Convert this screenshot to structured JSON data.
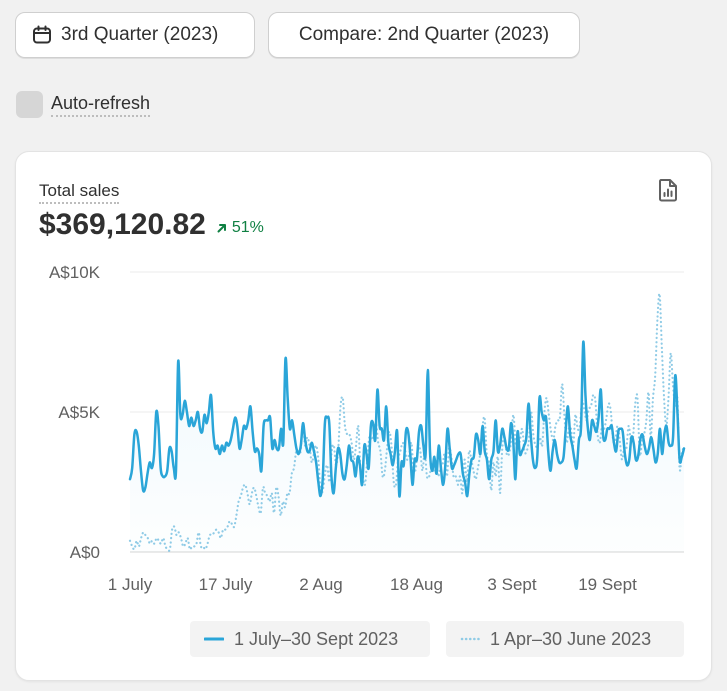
{
  "controls": {
    "period_label": "3rd Quarter (2023)",
    "compare_label": "Compare: 2nd Quarter (2023)",
    "auto_refresh_label": "Auto-refresh",
    "auto_refresh_checked": false
  },
  "card": {
    "title": "Total sales",
    "total": "$369,120.82",
    "delta": "51%",
    "delta_direction": "up",
    "report_icon": "report-icon"
  },
  "colors": {
    "current": "#2aa5d8",
    "previous": "#8fcbe6",
    "positive": "#108043"
  },
  "chart_data": {
    "type": "line",
    "title": "",
    "xlabel": "",
    "ylabel": "",
    "ylim": [
      0,
      10000
    ],
    "y_ticks": [
      0,
      5000,
      10000
    ],
    "y_tick_labels": [
      "A$0",
      "A$5K",
      "A$10K"
    ],
    "x_tick_labels": [
      "1 July",
      "17 July",
      "2 Aug",
      "18 Aug",
      "3 Sept",
      "19 Sept"
    ],
    "grid": true,
    "legend": "bottom",
    "series": [
      {
        "name": "1 July–30 Sept 2023",
        "style": "solid",
        "values": [
          2600,
          3000,
          4200,
          4300,
          3800,
          2900,
          2200,
          2300,
          2800,
          3200,
          3000,
          3500,
          5000,
          4500,
          3000,
          2700,
          2700,
          2900,
          3700,
          3600,
          3000,
          2900,
          6800,
          4900,
          4900,
          5400,
          5000,
          4500,
          4800,
          4500,
          4700,
          5000,
          4400,
          4300,
          4900,
          4600,
          5000,
          5600,
          4300,
          3700,
          3800,
          3500,
          3800,
          3600,
          3900,
          3800,
          4000,
          4400,
          4800,
          4500,
          3700,
          4000,
          4500,
          4400,
          4700,
          5200,
          4300,
          3600,
          3700,
          3500,
          2900,
          4500,
          4700,
          4700,
          4800,
          3700,
          4000,
          3700,
          3700,
          4400,
          3900,
          6900,
          5500,
          4400,
          4700,
          4200,
          3700,
          3500,
          3800,
          4600,
          4000,
          3600,
          3600,
          3900,
          3600,
          3200,
          2500,
          2000,
          2600,
          4600,
          4800,
          4600,
          2700,
          2100,
          3000,
          3700,
          3500,
          2800,
          2600,
          3100,
          3800,
          3300,
          3200,
          2700,
          3400,
          3100,
          2400,
          3800,
          3500,
          3000,
          4500,
          4600,
          4000,
          5800,
          4500,
          4400,
          4000,
          5200,
          3900,
          3500,
          3100,
          3600,
          4300,
          2000,
          3200,
          3100,
          4300,
          4300,
          3500,
          2400,
          3300,
          3300,
          4300,
          4500,
          3800,
          3500,
          6500,
          3600,
          2900,
          3400,
          2800,
          3800,
          3000,
          2400,
          3100,
          4400,
          3700,
          3000,
          3100,
          3300,
          3500,
          3500,
          2800,
          2500,
          2000,
          2800,
          3300,
          3400,
          4200,
          4000,
          3500,
          4500,
          3600,
          3300,
          2600,
          3300,
          3600,
          4700,
          3600,
          3800,
          4400,
          4100,
          3700,
          3700,
          4600,
          4000,
          2600,
          4300,
          3500,
          3600,
          3800,
          4100,
          5300,
          4200,
          3300,
          3000,
          3400,
          5500,
          5000,
          4700,
          4800,
          3600,
          2900,
          3600,
          4000,
          3500,
          3200,
          3200,
          3400,
          4400,
          5200,
          4200,
          3800,
          3300,
          3000,
          4000,
          4500,
          7500,
          5600,
          4500,
          4000,
          4700,
          4500,
          4300,
          4800,
          5800,
          4200,
          4000,
          4400,
          4400,
          4500,
          3900,
          3600,
          4300,
          4400,
          4300,
          3500,
          3100,
          3300,
          4100,
          3900,
          3300,
          3400,
          4000,
          4200,
          3800,
          3500,
          3700,
          4100,
          3700,
          3200,
          3500,
          4400,
          3500,
          4200,
          4500,
          3900,
          3800,
          4100,
          6300,
          5000,
          3300,
          3400,
          3700
        ]
      },
      {
        "name": "1 Apr–30 June 2023",
        "style": "dotted",
        "values": [
          400,
          200,
          100,
          400,
          200,
          500,
          700,
          600,
          500,
          300,
          400,
          300,
          500,
          400,
          300,
          500,
          200,
          100,
          100,
          800,
          900,
          600,
          700,
          500,
          200,
          300,
          500,
          100,
          200,
          200,
          300,
          700,
          200,
          200,
          100,
          300,
          600,
          600,
          700,
          800,
          700,
          500,
          800,
          800,
          900,
          1100,
          1000,
          900,
          1300,
          1800,
          2000,
          2300,
          2400,
          2100,
          1700,
          2100,
          2300,
          2000,
          1600,
          1400,
          2300,
          2100,
          2000,
          1800,
          2100,
          1400,
          2300,
          2000,
          1300,
          1800,
          1600,
          2100,
          2100,
          2800,
          3000,
          3600,
          3600,
          3600,
          4600,
          3800,
          4100,
          3800,
          3200,
          3500,
          3800,
          3300,
          2200,
          2200,
          2800,
          3100,
          2500,
          3600,
          3800,
          3100,
          3700,
          5200,
          5500,
          4500,
          4200,
          4200,
          3900,
          3300,
          3800,
          4500,
          3000,
          2700,
          2400,
          3200,
          4100,
          4000,
          4200,
          4600,
          3900,
          3600,
          2700,
          2900,
          3700,
          4300,
          3800,
          2500,
          2400,
          3300,
          3600,
          3900,
          3700,
          3300,
          3500,
          3900,
          2900,
          3000,
          3800,
          3600,
          2900,
          3600,
          2700,
          2700,
          3000,
          2900,
          3300,
          2700,
          3000,
          3100,
          3500,
          2700,
          3700,
          3400,
          2700,
          2700,
          2400,
          2700,
          2100,
          3300,
          2500,
          3600,
          3300,
          2900,
          2600,
          3000,
          3500,
          4400,
          4800,
          3500,
          3200,
          2200,
          3200,
          2700,
          3400,
          2100,
          3700,
          4100,
          3500,
          3500,
          4000,
          4900,
          3900,
          3700,
          4000,
          4400,
          3600,
          3600,
          4000,
          5000,
          4200,
          3800,
          3800,
          4100,
          3800,
          5000,
          5500,
          4900,
          4300,
          4000,
          4500,
          4700,
          4800,
          6000,
          4900,
          3900,
          4400,
          4400,
          3800,
          4900,
          4400,
          4500,
          5400,
          5100,
          4700,
          5100,
          5200,
          5600,
          5400,
          4200,
          3900,
          4500,
          4400,
          4800,
          5300,
          5000,
          4000,
          4000,
          4500,
          4000,
          3300,
          3700,
          3700,
          4500,
          4000,
          4100,
          5300,
          5500,
          3500,
          3900,
          4200,
          4700,
          5700,
          4100,
          5500,
          6300,
          8300,
          9200,
          7300,
          5500,
          4500,
          5500,
          7100,
          6000,
          5200,
          5500,
          3000,
          3500,
          3800
        ]
      }
    ]
  }
}
